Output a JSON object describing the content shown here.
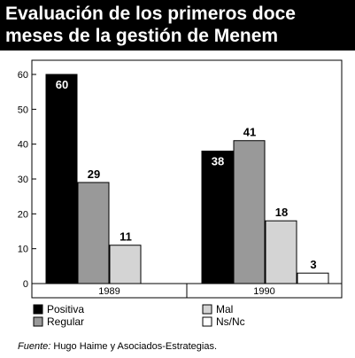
{
  "title_lines": [
    "Evaluación de los primeros doce",
    "meses de la gestión de Menem"
  ],
  "source": {
    "prefix": "Fuente:",
    "text": " Hugo Haime y Asociados-Estrategias."
  },
  "colors": {
    "positiva": "#000000",
    "regular": "#999999",
    "mal": "#d4d4d4",
    "nsnc": "#ffffff"
  },
  "chart_data": {
    "type": "bar",
    "categories": [
      "1989",
      "1990"
    ],
    "series": [
      {
        "name": "Positiva",
        "values": [
          60,
          38
        ]
      },
      {
        "name": "Regular",
        "values": [
          29,
          41
        ]
      },
      {
        "name": "Mal",
        "values": [
          11,
          18
        ]
      },
      {
        "name": "Ns/Nc",
        "values": [
          null,
          3
        ]
      }
    ],
    "yticks": [
      0,
      10,
      20,
      30,
      40,
      50,
      60
    ],
    "ylim": [
      0,
      65
    ],
    "title": "Evaluación de los primeros doce meses de la gestión de Menem",
    "xlabel": "",
    "ylabel": "",
    "grid": false,
    "legend_position": "bottom"
  }
}
